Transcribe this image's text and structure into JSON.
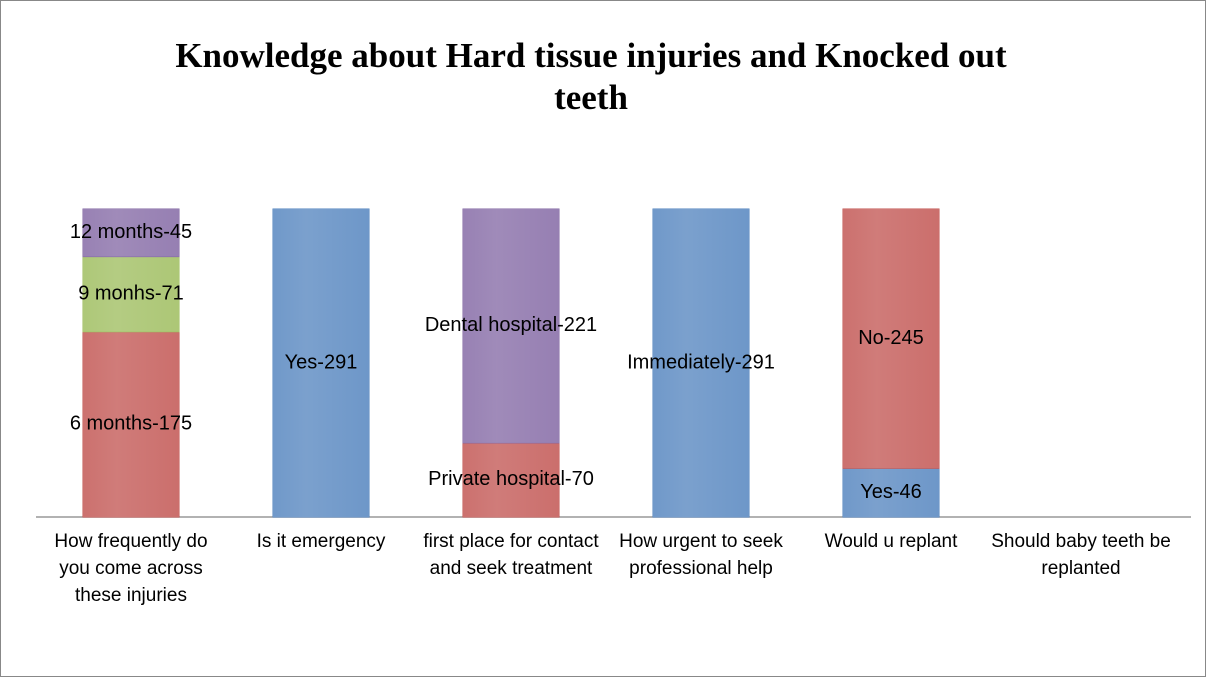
{
  "chart_data": {
    "type": "stacked_bar",
    "title": "Knowledge about Hard tissue injuries and Knocked out teeth",
    "categories": [
      "How frequently do you come across these injuries",
      "Is it emergency",
      "first place for contact and seek treatment",
      "How urgent to seek professional help",
      "Would u replant",
      "Should baby teeth be replanted"
    ],
    "stacks": [
      [
        {
          "value": 175,
          "label": "6 months-175",
          "color": "#c0504d"
        },
        {
          "value": 71,
          "label": "9 monhs-71",
          "color": "#9bbb59"
        },
        {
          "value": 45,
          "label": "12 months-45",
          "color": "#8064a2"
        }
      ],
      [
        {
          "value": 291,
          "label": "Yes-291",
          "color": "#4f81bd"
        }
      ],
      [
        {
          "value": 70,
          "label": "Private hospital-70",
          "color": "#c0504d"
        },
        {
          "value": 221,
          "label": "Dental hospital-221",
          "color": "#8064a2"
        }
      ],
      [
        {
          "value": 291,
          "label": "Immediately-291",
          "color": "#4f81bd"
        }
      ],
      [
        {
          "value": 46,
          "label": "Yes-46",
          "color": "#4f81bd"
        },
        {
          "value": 245,
          "label": "No-245",
          "color": "#c0504d"
        }
      ],
      []
    ]
  }
}
